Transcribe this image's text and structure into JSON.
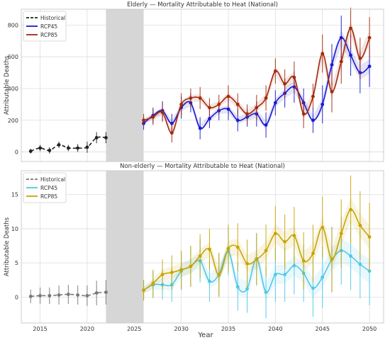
{
  "x_axis_label": "Year",
  "x_ticks": [
    2015,
    2020,
    2025,
    2030,
    2035,
    2040,
    2045,
    2050
  ],
  "colors": {
    "historical_top": "#222222",
    "historical_bottom": "#777777",
    "shade": "#d6d6d6",
    "grid": "#dddddd"
  },
  "chart_data": [
    {
      "type": "line",
      "title": "Elderly — Mortality Attributable to Heat (National)",
      "ylabel": "Attributable Deaths",
      "xlim": [
        2013,
        2051.5
      ],
      "ylim": [
        -60,
        900
      ],
      "yticks": [
        0,
        200,
        400,
        600,
        800
      ],
      "shaded_range": [
        2022,
        2026
      ],
      "legend": "top-left",
      "series": [
        {
          "name": "Historical",
          "style": "dashed",
          "color": "#222222",
          "x": [
            2014,
            2015,
            2016,
            2017,
            2018,
            2019,
            2020,
            2021,
            2022
          ],
          "y": [
            5,
            25,
            10,
            45,
            25,
            25,
            30,
            90,
            90
          ],
          "err": [
            15,
            20,
            20,
            20,
            20,
            25,
            35,
            35,
            35
          ]
        },
        {
          "name": "RCP45",
          "color": "#1a1ad0",
          "x": [
            2026,
            2027,
            2028,
            2029,
            2030,
            2031,
            2032,
            2033,
            2034,
            2035,
            2036,
            2037,
            2038,
            2039,
            2040,
            2041,
            2042,
            2043,
            2044,
            2045,
            2046,
            2047,
            2048,
            2049,
            2050
          ],
          "y": [
            180,
            230,
            260,
            180,
            280,
            310,
            150,
            210,
            260,
            270,
            200,
            220,
            240,
            170,
            310,
            370,
            410,
            310,
            200,
            300,
            550,
            720,
            610,
            500,
            540
          ],
          "err": [
            40,
            50,
            60,
            60,
            70,
            60,
            70,
            60,
            60,
            70,
            70,
            60,
            80,
            80,
            80,
            90,
            100,
            90,
            80,
            120,
            130,
            140,
            130,
            130,
            130
          ]
        },
        {
          "name": "RCP85",
          "color": "#a42a0c",
          "x": [
            2026,
            2027,
            2028,
            2029,
            2030,
            2031,
            2032,
            2033,
            2034,
            2035,
            2036,
            2037,
            2038,
            2039,
            2040,
            2041,
            2042,
            2043,
            2044,
            2045,
            2046,
            2047,
            2048,
            2049,
            2050
          ],
          "y": [
            200,
            220,
            250,
            120,
            300,
            340,
            340,
            280,
            300,
            350,
            300,
            240,
            280,
            340,
            510,
            430,
            470,
            240,
            350,
            620,
            380,
            570,
            780,
            590,
            720
          ],
          "err": [
            40,
            50,
            60,
            60,
            70,
            60,
            70,
            60,
            60,
            70,
            70,
            60,
            80,
            80,
            80,
            90,
            100,
            90,
            80,
            120,
            130,
            140,
            130,
            130,
            130
          ]
        }
      ]
    },
    {
      "type": "line",
      "title": "Non-elderly — Mortality Attributable to Heat (National)",
      "ylabel": "Attributable Deaths",
      "xlim": [
        2013,
        2051.5
      ],
      "ylim": [
        -3.8,
        18.5
      ],
      "yticks": [
        0,
        5,
        10,
        15
      ],
      "shaded_range": [
        2022,
        2026
      ],
      "legend": "top-left",
      "series": [
        {
          "name": "Historical",
          "style": "dashed",
          "color": "#777777",
          "x": [
            2014,
            2015,
            2016,
            2017,
            2018,
            2019,
            2020,
            2021,
            2022
          ],
          "y": [
            0.1,
            0.2,
            0.2,
            0.3,
            0.4,
            0.3,
            0.2,
            0.6,
            0.7
          ],
          "err": [
            1.0,
            1.2,
            1.2,
            1.4,
            1.4,
            1.4,
            1.5,
            1.8,
            1.8
          ]
        },
        {
          "name": "RCP45",
          "color": "#4fc8e8",
          "x": [
            2026,
            2027,
            2028,
            2029,
            2030,
            2031,
            2032,
            2033,
            2034,
            2035,
            2036,
            2037,
            2038,
            2039,
            2040,
            2041,
            2042,
            2043,
            2044,
            2045,
            2046,
            2047,
            2048,
            2049,
            2050
          ],
          "y": [
            1.0,
            1.8,
            1.8,
            1.8,
            3.8,
            4.5,
            5.3,
            2.3,
            3.3,
            6.7,
            1.5,
            1.2,
            5.6,
            0.7,
            3.3,
            3.3,
            4.6,
            3.5,
            1.3,
            2.9,
            5.5,
            6.8,
            6.0,
            4.8,
            3.8
          ],
          "err": [
            1.5,
            2.0,
            2.2,
            2.5,
            2.8,
            3.0,
            3.2,
            3.0,
            3.2,
            3.5,
            3.5,
            3.5,
            3.8,
            3.8,
            4.0,
            4.0,
            4.2,
            4.2,
            4.2,
            4.5,
            4.8,
            5.0,
            5.0,
            5.0,
            5.0
          ]
        },
        {
          "name": "RCP85",
          "color": "#c9a400",
          "x": [
            2026,
            2027,
            2028,
            2029,
            2030,
            2031,
            2032,
            2033,
            2034,
            2035,
            2036,
            2037,
            2038,
            2039,
            2040,
            2041,
            2042,
            2043,
            2044,
            2045,
            2046,
            2047,
            2048,
            2049,
            2050
          ],
          "y": [
            1.0,
            2.0,
            3.3,
            3.6,
            4.0,
            4.5,
            6.0,
            7.0,
            3.2,
            7.1,
            7.3,
            4.9,
            5.5,
            6.8,
            9.3,
            8.1,
            9.0,
            5.3,
            6.4,
            10.2,
            5.5,
            9.3,
            12.8,
            10.5,
            8.8
          ],
          "err": [
            1.5,
            2.0,
            2.2,
            2.5,
            2.8,
            3.0,
            3.2,
            3.0,
            3.2,
            3.5,
            3.5,
            3.5,
            3.8,
            3.8,
            4.0,
            4.0,
            4.2,
            4.2,
            4.2,
            4.5,
            4.8,
            5.0,
            5.0,
            5.0,
            5.0
          ]
        }
      ]
    }
  ]
}
